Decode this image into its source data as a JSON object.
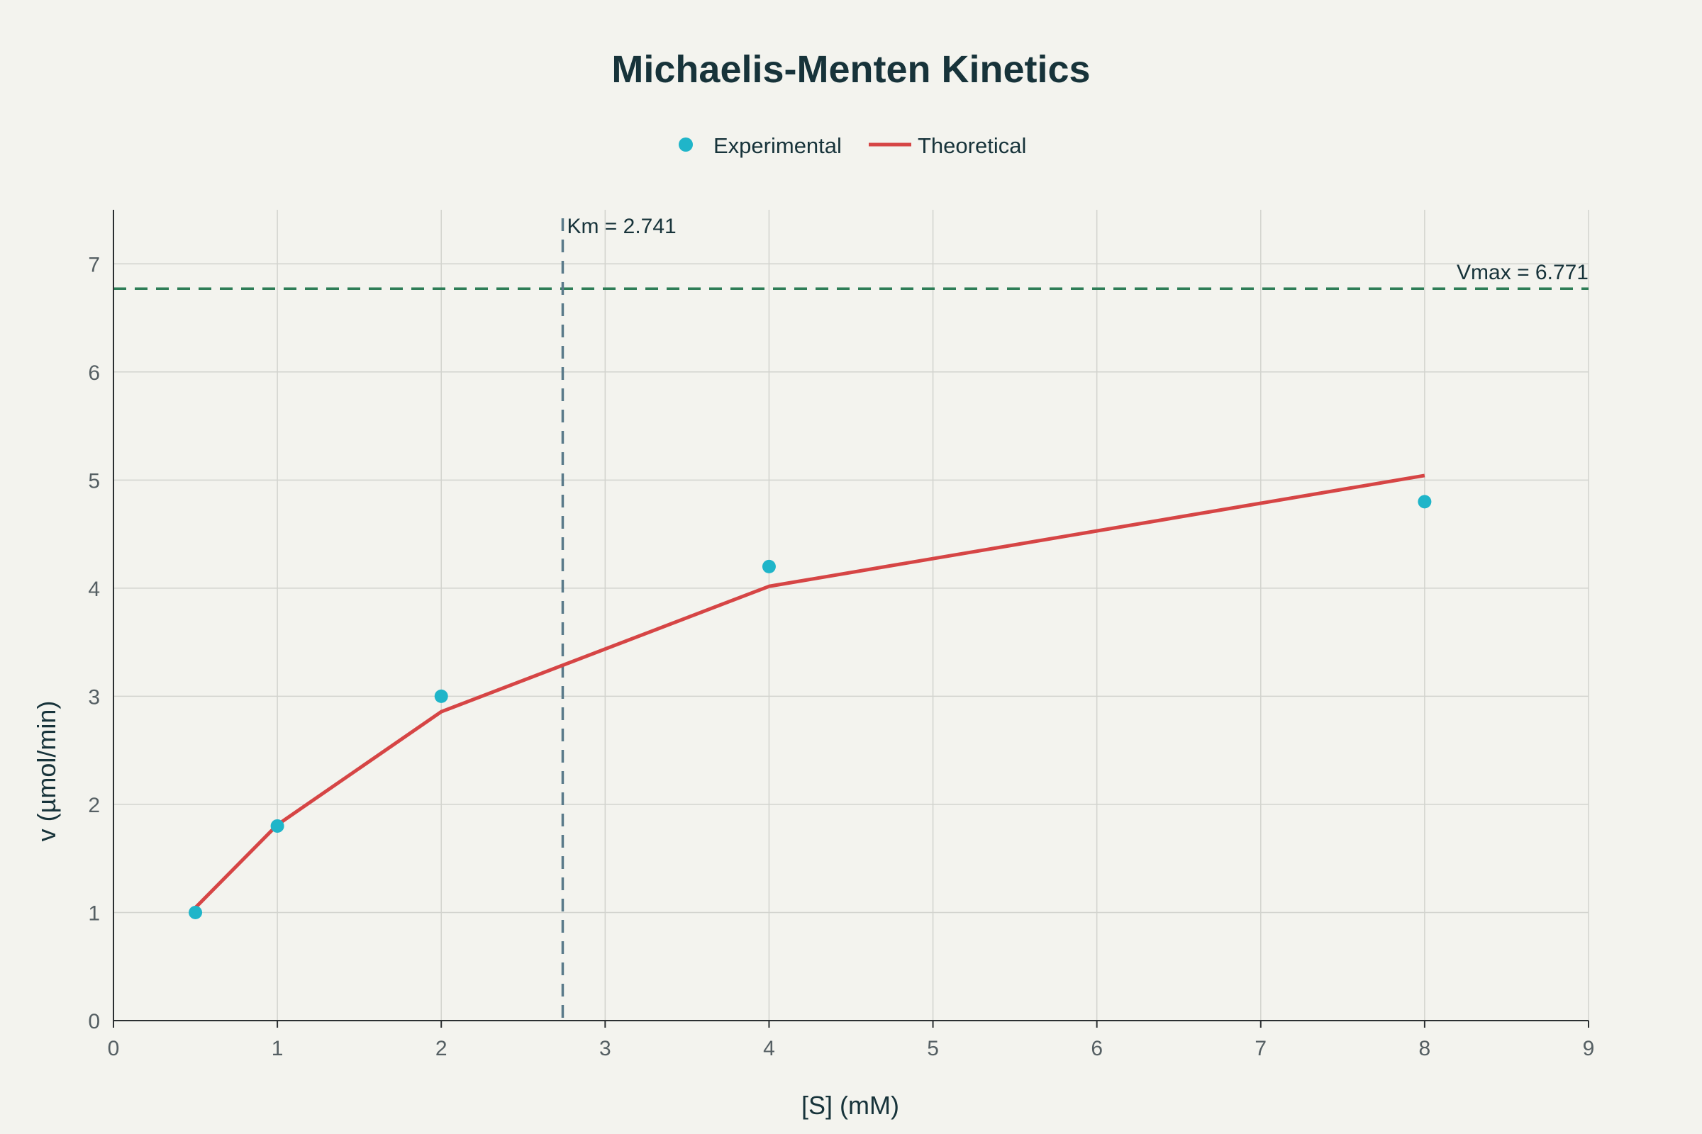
{
  "chart_data": {
    "type": "scatter",
    "title": "Michaelis-Menten Kinetics",
    "xlabel": "[S] (mM)",
    "ylabel": "v (µmol/min)",
    "xlim": [
      0,
      9
    ],
    "ylim": [
      0,
      7.5
    ],
    "x_ticks": [
      0,
      1,
      2,
      3,
      4,
      5,
      6,
      7,
      8,
      9
    ],
    "y_ticks": [
      0,
      1,
      2,
      3,
      4,
      5,
      6,
      7
    ],
    "grid": true,
    "legend_position": "top-center",
    "series": [
      {
        "name": "Experimental",
        "mode": "markers",
        "color": "#1fb5c9",
        "x": [
          0.5,
          1,
          2,
          4,
          8
        ],
        "y": [
          1.0,
          1.8,
          3.0,
          4.2,
          4.8
        ]
      },
      {
        "name": "Theoretical",
        "mode": "line",
        "color": "#d64545",
        "x": [
          0.5,
          1,
          2,
          4,
          8
        ],
        "y": [
          1.045,
          1.811,
          2.857,
          4.017,
          5.042
        ]
      }
    ],
    "reference_lines": [
      {
        "orientation": "horizontal",
        "value": 6.771,
        "label": "Vmax = 6.771",
        "color": "#2e7d57"
      },
      {
        "orientation": "vertical",
        "value": 2.741,
        "label": "Km = 2.741",
        "color": "#5a7a8a"
      }
    ]
  }
}
